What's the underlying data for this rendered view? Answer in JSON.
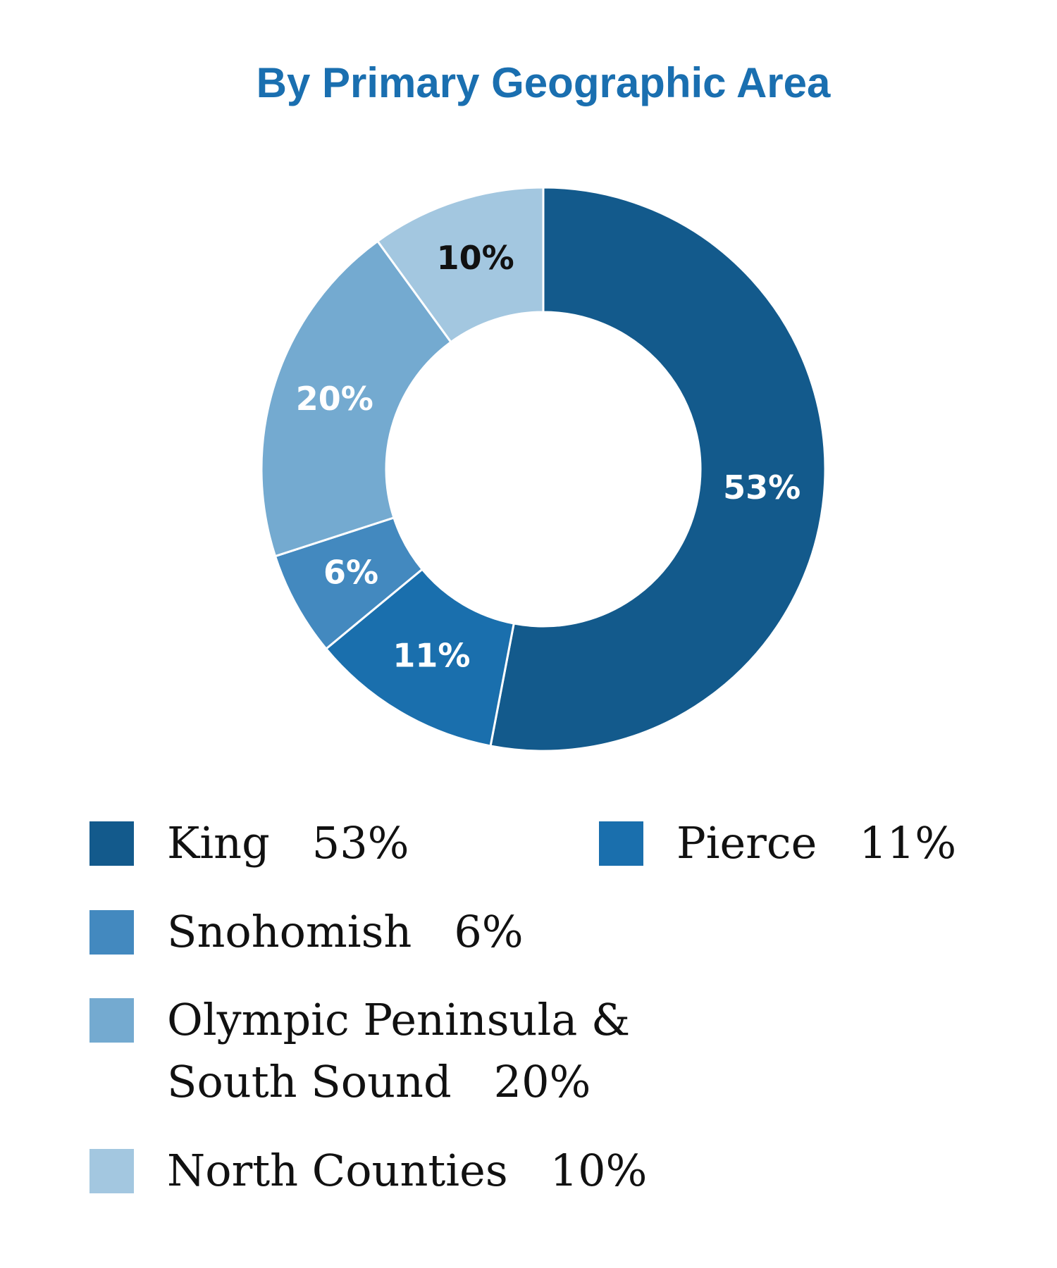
{
  "chart_data": {
    "type": "donut",
    "title": "By Primary Geographic Area",
    "categories": [
      "King",
      "Pierce",
      "Snohomish",
      "Olympic Peninsula & South Sound",
      "North Counties"
    ],
    "values": [
      53,
      11,
      6,
      20,
      10
    ],
    "value_labels": [
      "53%",
      "11%",
      "6%",
      "20%",
      "10%"
    ],
    "colors": [
      "#135a8c",
      "#1a6fad",
      "#4389bf",
      "#74aad0",
      "#a3c7e0"
    ]
  }
}
